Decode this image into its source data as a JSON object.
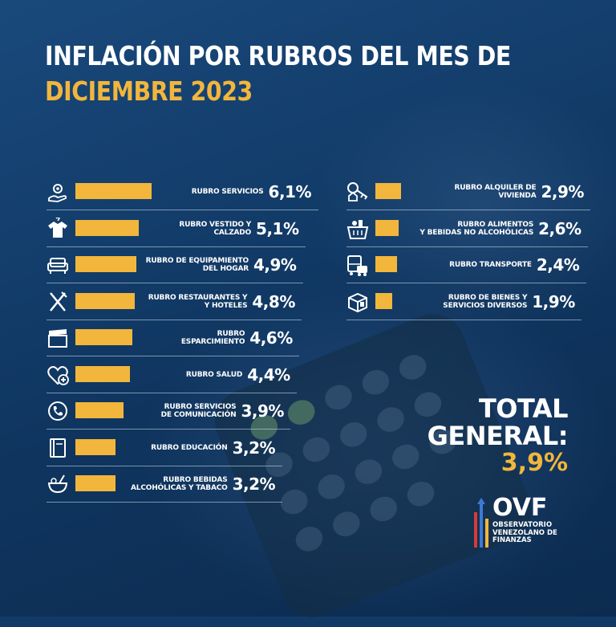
{
  "header": {
    "title_line1": "INFLACIÓN POR RUBROS DEL MES DE",
    "title_line2": "DICIEMBRE 2023"
  },
  "colors": {
    "accent": "#f2b63c",
    "background": "#123a66",
    "text": "#ffffff"
  },
  "chart_data": {
    "type": "bar",
    "unit": "%",
    "categories": [
      "RUBRO SERVICIOS",
      "RUBRO VESTIDO Y CALZADO",
      "RUBRO DE EQUIPAMIENTO DEL HOGAR",
      "RUBRO RESTAURANTES Y HOTELES",
      "RUBRO ESPARCIMIENTO",
      "RUBRO SALUD",
      "RUBRO SERVICIOS DE COMUNICACIÓN",
      "RUBRO EDUCACIÓN",
      "RUBRO BEBIDAS ALCOHÓLICAS Y TABACO",
      "RUBRO ALQUILER DE VIVIENDA",
      "RUBRO ALIMENTOS Y BEBIDAS NO ALCOHÓLICAS",
      "RUBRO TRANSPORTE",
      "RUBRO DE BIENES Y SERVICIOS DIVERSOS"
    ],
    "values": [
      6.1,
      5.1,
      4.9,
      4.8,
      4.6,
      4.4,
      3.9,
      3.2,
      3.2,
      2.9,
      2.6,
      2.4,
      1.9
    ],
    "items": [
      {
        "label_line1": "RUBRO SERVICIOS",
        "label_line2": "",
        "value": 6.1,
        "value_text": "6,1%",
        "icon": "gear-hand-icon"
      },
      {
        "label_line1": "RUBRO VESTIDO Y",
        "label_line2": "CALZADO",
        "value": 5.1,
        "value_text": "5,1%",
        "icon": "tshirt-icon"
      },
      {
        "label_line1": "RUBRO DE EQUIPAMIENTO",
        "label_line2": "DEL HOGAR",
        "value": 4.9,
        "value_text": "4,9%",
        "icon": "sofa-icon"
      },
      {
        "label_line1": "RUBRO RESTAURANTES Y",
        "label_line2": "Y HOTELES",
        "value": 4.8,
        "value_text": "4,8%",
        "icon": "fork-knife-icon"
      },
      {
        "label_line1": "RUBRO",
        "label_line2": "ESPARCIMIENTO",
        "value": 4.6,
        "value_text": "4,6%",
        "icon": "clapperboard-icon"
      },
      {
        "label_line1": "RUBRO SALUD",
        "label_line2": "",
        "value": 4.4,
        "value_text": "4,4%",
        "icon": "heart-plus-icon"
      },
      {
        "label_line1": "RUBRO SERVICIOS",
        "label_line2": "DE COMUNICACIÓN",
        "value": 3.9,
        "value_text": "3,9%",
        "icon": "phone-icon"
      },
      {
        "label_line1": "RUBRO EDUCACIÓN",
        "label_line2": "",
        "value": 3.2,
        "value_text": "3,2%",
        "icon": "book-icon"
      },
      {
        "label_line1": "RUBRO BEBIDAS",
        "label_line2": "ALCOHÓLICAS Y TABACO",
        "value": 3.2,
        "value_text": "3,2%",
        "icon": "drink-icon"
      },
      {
        "label_line1": "RUBRO ALQUILER DE",
        "label_line2": "VIVIENDA",
        "value": 2.9,
        "value_text": "2,9%",
        "icon": "house-key-icon"
      },
      {
        "label_line1": "RUBRO ALIMENTOS",
        "label_line2": "Y BEBIDAS NO ALCOHÓLICAS",
        "value": 2.6,
        "value_text": "2,6%",
        "icon": "grocery-basket-icon"
      },
      {
        "label_line1": "RUBRO TRANSPORTE",
        "label_line2": "",
        "value": 2.4,
        "value_text": "2,4%",
        "icon": "bus-car-icon"
      },
      {
        "label_line1": "RUBRO DE BIENES Y",
        "label_line2": "SERVICIOS DIVERSOS",
        "value": 1.9,
        "value_text": "1,9%",
        "icon": "box-icon"
      }
    ],
    "legend": "none",
    "grid": false
  },
  "total": {
    "label_line1": "TOTAL",
    "label_line2": "GENERAL:",
    "value": 3.9,
    "value_text": "3,9%"
  },
  "logo": {
    "name": "OVF",
    "org_line1": "OBSERVATORIO",
    "org_line2": "VENEZOLANO DE",
    "org_line3": "FINANZAS"
  }
}
